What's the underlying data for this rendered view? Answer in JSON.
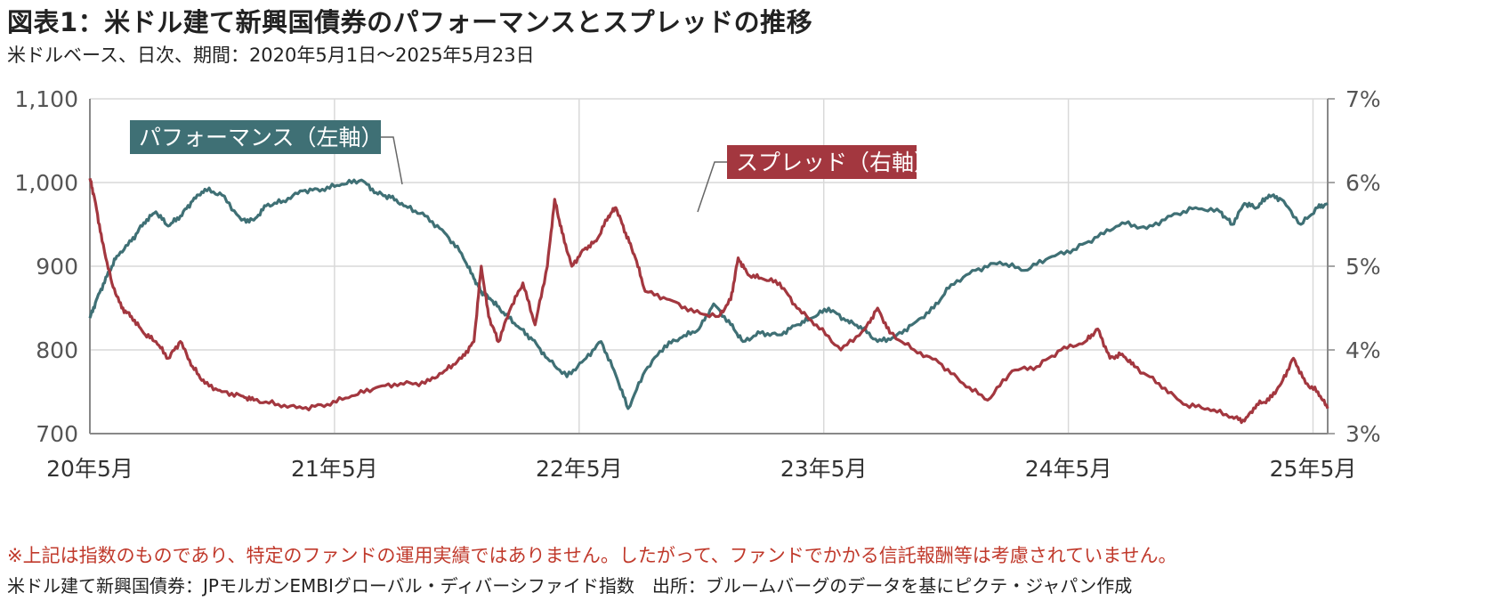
{
  "title": "図表1：米ドル建て新興国債券のパフォーマンスとスプレッドの推移",
  "subtitle": "米ドルベース、日次、期間：2020年5月1日～2025年5月23日",
  "note": "※上記は指数のものであり、特定のファンドの運用実績ではありません。したがって、ファンドでかかる信託報酬等は考慮されていません。",
  "source": "米ドル建て新興国債券：JPモルガンEMBIグローバル・ディバーシファイド指数　出所：ブルームバーグのデータを基にピクテ・ジャパン作成",
  "colors": {
    "performance": "#3f7075",
    "spread": "#a3373f",
    "grid": "#d9d9d9",
    "axis": "#888888"
  },
  "chart_data": {
    "type": "line",
    "x_tick_labels": [
      "20年5月",
      "21年5月",
      "22年5月",
      "23年5月",
      "24年5月",
      "25年5月"
    ],
    "left_axis": {
      "ticks": [
        "700",
        "800",
        "900",
        "1,000",
        "1,100"
      ],
      "ylim": [
        700,
        1100
      ]
    },
    "right_axis": {
      "ticks": [
        "3%",
        "4%",
        "5%",
        "6%",
        "7%"
      ],
      "ylim": [
        3,
        7
      ]
    },
    "grid": true,
    "series": [
      {
        "name": "パフォーマンス（左軸）",
        "axis": "left",
        "x": [
          2020.33,
          2020.36,
          2020.4,
          2020.44,
          2020.5,
          2020.55,
          2020.6,
          2020.65,
          2020.7,
          2020.75,
          2020.8,
          2020.87,
          2020.95,
          2021.0,
          2021.05,
          2021.12,
          2021.2,
          2021.28,
          2021.36,
          2021.44,
          2021.5,
          2021.56,
          2021.62,
          2021.7,
          2021.78,
          2021.85,
          2021.9,
          2021.93,
          2021.97,
          2022.02,
          2022.08,
          2022.14,
          2022.2,
          2022.28,
          2022.35,
          2022.42,
          2022.48,
          2022.53,
          2022.6,
          2022.68,
          2022.75,
          2022.82,
          2022.88,
          2022.95,
          2023.0,
          2023.07,
          2023.15,
          2023.22,
          2023.28,
          2023.35,
          2023.42,
          2023.48,
          2023.55,
          2023.62,
          2023.7,
          2023.78,
          2023.85,
          2023.95,
          2024.05,
          2024.15,
          2024.25,
          2024.35,
          2024.45,
          2024.55,
          2024.65,
          2024.75,
          2024.85,
          2024.95,
          2025.0,
          2025.05,
          2025.1,
          2025.15,
          2025.2,
          2025.28,
          2025.35,
          2025.39
        ],
        "values": [
          838,
          862,
          888,
          912,
          930,
          952,
          965,
          948,
          960,
          978,
          992,
          985,
          955,
          955,
          972,
          978,
          990,
          992,
          998,
          1003,
          988,
          982,
          972,
          960,
          940,
          915,
          885,
          870,
          860,
          845,
          828,
          812,
          790,
          768,
          788,
          810,
          770,
          730,
          775,
          805,
          815,
          825,
          855,
          830,
          810,
          820,
          818,
          830,
          838,
          850,
          835,
          828,
          810,
          815,
          832,
          850,
          878,
          895,
          905,
          895,
          910,
          920,
          935,
          952,
          945,
          960,
          970,
          965,
          950,
          975,
          970,
          985,
          980,
          950,
          970,
          975
        ]
      },
      {
        "name": "スプレッド（右軸）",
        "axis": "right",
        "x": [
          2020.33,
          2020.35,
          2020.38,
          2020.42,
          2020.46,
          2020.5,
          2020.55,
          2020.6,
          2020.65,
          2020.7,
          2020.75,
          2020.8,
          2020.87,
          2020.95,
          2021.0,
          2021.1,
          2021.2,
          2021.3,
          2021.4,
          2021.5,
          2021.6,
          2021.7,
          2021.78,
          2021.85,
          2021.9,
          2021.93,
          2021.96,
          2022.0,
          2022.05,
          2022.1,
          2022.15,
          2022.2,
          2022.23,
          2022.26,
          2022.3,
          2022.35,
          2022.4,
          2022.45,
          2022.48,
          2022.52,
          2022.56,
          2022.6,
          2022.7,
          2022.8,
          2022.9,
          2022.95,
          2022.98,
          2023.02,
          2023.08,
          2023.15,
          2023.22,
          2023.3,
          2023.4,
          2023.5,
          2023.55,
          2023.6,
          2023.7,
          2023.8,
          2023.9,
          2024.0,
          2024.1,
          2024.2,
          2024.3,
          2024.4,
          2024.45,
          2024.5,
          2024.55,
          2024.6,
          2024.7,
          2024.8,
          2024.9,
          2025.0,
          2025.05,
          2025.1,
          2025.15,
          2025.2,
          2025.25,
          2025.3,
          2025.35,
          2025.39
        ],
        "values": [
          6.05,
          5.8,
          5.3,
          4.8,
          4.5,
          4.4,
          4.2,
          4.1,
          3.9,
          4.1,
          3.8,
          3.6,
          3.5,
          3.45,
          3.4,
          3.35,
          3.3,
          3.35,
          3.45,
          3.55,
          3.6,
          3.6,
          3.75,
          3.9,
          4.1,
          5.0,
          4.4,
          4.1,
          4.5,
          4.8,
          4.3,
          5.0,
          5.8,
          5.4,
          5.0,
          5.2,
          5.3,
          5.6,
          5.7,
          5.4,
          5.1,
          4.7,
          4.6,
          4.45,
          4.4,
          4.6,
          5.1,
          4.9,
          4.85,
          4.8,
          4.5,
          4.3,
          4.0,
          4.25,
          4.5,
          4.2,
          4.0,
          3.85,
          3.6,
          3.4,
          3.75,
          3.8,
          4.0,
          4.1,
          4.25,
          3.9,
          3.95,
          3.8,
          3.6,
          3.35,
          3.3,
          3.2,
          3.15,
          3.35,
          3.4,
          3.6,
          3.9,
          3.6,
          3.5,
          3.3
        ]
      }
    ]
  }
}
